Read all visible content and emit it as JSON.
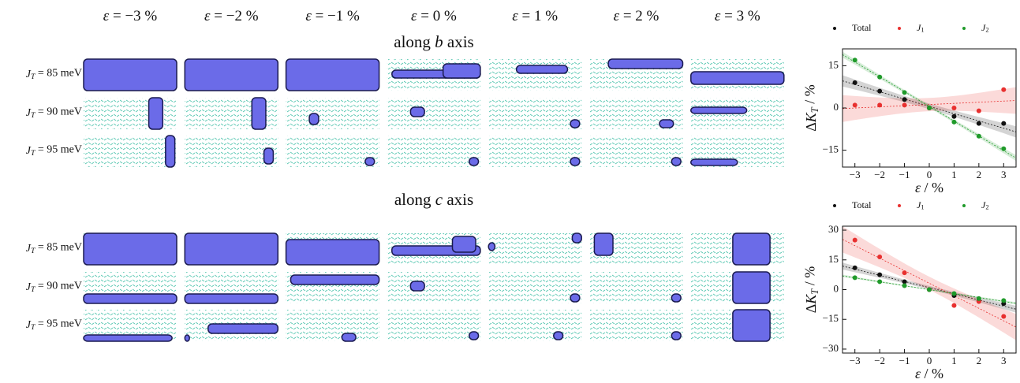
{
  "columns": [
    "ε = −3 %",
    "ε = −2 %",
    "ε = −1 %",
    "ε = 0 %",
    "ε = 1 %",
    "ε = 2 %",
    "ε = 3 %"
  ],
  "sections": [
    {
      "title": "along b axis",
      "rows": [
        "JT = 85 meV",
        "JT = 90 meV",
        "JT = 95 meV"
      ]
    },
    {
      "title": "along c axis",
      "rows": [
        "JT = 85 meV",
        "JT = 90 meV",
        "JT = 95 meV"
      ]
    }
  ],
  "chart_data": [
    {
      "type": "scatter",
      "xlabel": "ε / %",
      "ylabel": "ΔKT / %",
      "x": [
        -3,
        -2,
        -1,
        0,
        1,
        2,
        3
      ],
      "xlim": [
        -3.5,
        3.5
      ],
      "xticks": [
        {
          "value": -3,
          "label": "−3"
        },
        {
          "value": -2,
          "label": "−2"
        },
        {
          "value": -1,
          "label": "−1"
        },
        0,
        1,
        2,
        3
      ],
      "ylim": [
        -21,
        21
      ],
      "yticks": [
        {
          "value": -15,
          "label": "−15"
        },
        0,
        15
      ],
      "series": [
        {
          "name": "Total",
          "color": "#111111",
          "values": [
            9,
            6,
            3,
            0,
            -3,
            -5.5,
            -5.5
          ]
        },
        {
          "name": "J1",
          "color": "#e8302f",
          "values": [
            1,
            1,
            1,
            0,
            0,
            -1,
            6.5
          ]
        },
        {
          "name": "J2",
          "color": "#1f9a2a",
          "values": [
            17,
            11,
            5.5,
            0,
            -5,
            -10,
            -14.5
          ]
        }
      ]
    },
    {
      "type": "scatter",
      "xlabel": "ε / %",
      "ylabel": "ΔKT / %",
      "x": [
        -3,
        -2,
        -1,
        0,
        1,
        2,
        3
      ],
      "xlim": [
        -3.5,
        3.5
      ],
      "xticks": [
        {
          "value": -3,
          "label": "−3"
        },
        {
          "value": -2,
          "label": "−2"
        },
        {
          "value": -1,
          "label": "−1"
        },
        0,
        1,
        2,
        3
      ],
      "ylim": [
        -32,
        32
      ],
      "yticks": [
        {
          "value": -30,
          "label": "−30"
        },
        {
          "value": -15,
          "label": "−15"
        },
        0,
        15,
        30
      ],
      "series": [
        {
          "name": "Total",
          "color": "#111111",
          "values": [
            11,
            7.5,
            4,
            0,
            -3,
            -5.5,
            -7
          ]
        },
        {
          "name": "J1",
          "color": "#e8302f",
          "values": [
            25,
            16.5,
            8.5,
            0,
            -8,
            -6,
            -13.5
          ]
        },
        {
          "name": "J2",
          "color": "#1f9a2a",
          "values": [
            6,
            4,
            2,
            0,
            -2,
            -4.5,
            -5.5
          ]
        }
      ]
    }
  ]
}
